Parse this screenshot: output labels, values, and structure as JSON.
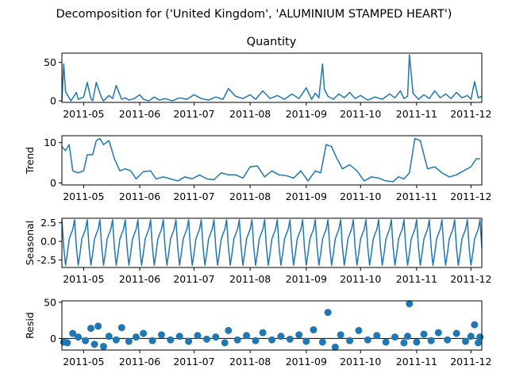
{
  "figure_title": "Decomposition for ('United Kingdom', 'ALUMINIUM STAMPED HEART')",
  "colors": {
    "series": "#1f77b4",
    "axes": "#000000",
    "zero_line": "#000000"
  },
  "x_tick_labels": [
    "2011-05",
    "2011-06",
    "2011-07",
    "2011-08",
    "2011-09",
    "2011-10",
    "2011-11",
    "2011-12"
  ],
  "chart_data": [
    {
      "type": "line",
      "name": "quantity",
      "title": "Quantity",
      "ylabel": "",
      "ylim": [
        -2,
        62
      ],
      "yticks": [
        0,
        50
      ],
      "xlim": [
        "2011-04-19",
        "2011-12-07"
      ],
      "x": [
        "2011-04-19",
        "2011-04-20",
        "2011-04-21",
        "2011-04-24",
        "2011-04-27",
        "2011-04-28",
        "2011-05-01",
        "2011-05-03",
        "2011-05-05",
        "2011-05-06",
        "2011-05-08",
        "2011-05-10",
        "2011-05-11",
        "2011-05-12",
        "2011-05-15",
        "2011-05-17",
        "2011-05-19",
        "2011-05-22",
        "2011-05-24",
        "2011-05-26",
        "2011-05-29",
        "2011-06-01",
        "2011-06-03",
        "2011-06-06",
        "2011-06-09",
        "2011-06-12",
        "2011-06-15",
        "2011-06-19",
        "2011-06-23",
        "2011-06-27",
        "2011-07-01",
        "2011-07-05",
        "2011-07-09",
        "2011-07-13",
        "2011-07-17",
        "2011-07-20",
        "2011-07-24",
        "2011-07-28",
        "2011-08-01",
        "2011-08-04",
        "2011-08-08",
        "2011-08-12",
        "2011-08-16",
        "2011-08-20",
        "2011-08-24",
        "2011-08-28",
        "2011-09-01",
        "2011-09-04",
        "2011-09-06",
        "2011-09-08",
        "2011-09-10",
        "2011-09-11",
        "2011-09-13",
        "2011-09-16",
        "2011-09-19",
        "2011-09-22",
        "2011-09-25",
        "2011-09-28",
        "2011-10-01",
        "2011-10-05",
        "2011-10-09",
        "2011-10-13",
        "2011-10-17",
        "2011-10-20",
        "2011-10-23",
        "2011-10-25",
        "2011-10-27",
        "2011-10-28",
        "2011-10-30",
        "2011-11-02",
        "2011-11-05",
        "2011-11-08",
        "2011-11-11",
        "2011-11-14",
        "2011-11-17",
        "2011-11-20",
        "2011-11-23",
        "2011-11-26",
        "2011-11-29",
        "2011-12-01",
        "2011-12-03",
        "2011-12-05",
        "2011-12-07"
      ],
      "values": [
        0,
        48,
        12,
        0,
        11,
        2,
        5,
        24,
        3,
        0,
        24,
        10,
        4,
        0,
        7,
        3,
        20,
        2,
        4,
        1,
        3,
        8,
        2,
        0,
        5,
        1,
        3,
        0,
        4,
        2,
        8,
        3,
        1,
        5,
        2,
        16,
        6,
        3,
        8,
        2,
        13,
        3,
        7,
        2,
        9,
        3,
        17,
        2,
        10,
        4,
        48,
        15,
        6,
        2,
        9,
        4,
        11,
        3,
        7,
        1,
        5,
        2,
        9,
        4,
        13,
        3,
        6,
        60,
        10,
        2,
        8,
        3,
        13,
        4,
        9,
        3,
        11,
        4,
        7,
        2,
        25,
        4,
        6
      ]
    },
    {
      "type": "line",
      "name": "trend",
      "title": "",
      "ylabel": "Trend",
      "ylim": [
        -0.5,
        11.7
      ],
      "yticks": [
        0,
        10
      ],
      "xlim": [
        "2011-04-19",
        "2011-12-07"
      ],
      "x": [
        "2011-04-19",
        "2011-04-21",
        "2011-04-23",
        "2011-04-25",
        "2011-04-28",
        "2011-05-01",
        "2011-05-03",
        "2011-05-06",
        "2011-05-08",
        "2011-05-10",
        "2011-05-12",
        "2011-05-15",
        "2011-05-18",
        "2011-05-21",
        "2011-05-24",
        "2011-05-27",
        "2011-05-30",
        "2011-06-03",
        "2011-06-07",
        "2011-06-10",
        "2011-06-14",
        "2011-06-18",
        "2011-06-22",
        "2011-06-26",
        "2011-06-30",
        "2011-07-04",
        "2011-07-08",
        "2011-07-12",
        "2011-07-16",
        "2011-07-20",
        "2011-07-24",
        "2011-07-28",
        "2011-08-01",
        "2011-08-05",
        "2011-08-09",
        "2011-08-13",
        "2011-08-17",
        "2011-08-21",
        "2011-08-25",
        "2011-08-29",
        "2011-09-02",
        "2011-09-06",
        "2011-09-09",
        "2011-09-12",
        "2011-09-15",
        "2011-09-18",
        "2011-09-21",
        "2011-09-25",
        "2011-09-29",
        "2011-10-03",
        "2011-10-07",
        "2011-10-11",
        "2011-10-15",
        "2011-10-19",
        "2011-10-22",
        "2011-10-25",
        "2011-10-28",
        "2011-10-31",
        "2011-11-03",
        "2011-11-07",
        "2011-11-11",
        "2011-11-15",
        "2011-11-19",
        "2011-11-23",
        "2011-11-27",
        "2011-12-01",
        "2011-12-04",
        "2011-12-06"
      ],
      "values": [
        9,
        8,
        9.5,
        3,
        2.5,
        3,
        7,
        7,
        10.5,
        11,
        9.5,
        10.5,
        6,
        3,
        3.5,
        3,
        1,
        2.8,
        3,
        1,
        1.5,
        1,
        0.5,
        1.5,
        1,
        2,
        1,
        0.8,
        2.5,
        2,
        2,
        1.2,
        4,
        4.2,
        1.5,
        3,
        2,
        1.8,
        1.2,
        3,
        0.5,
        3,
        2.5,
        9.5,
        9,
        6,
        3.5,
        4.5,
        3,
        0.5,
        1.5,
        1.2,
        0.5,
        0.3,
        1.5,
        1,
        2.5,
        11,
        10.5,
        3.5,
        4,
        2.5,
        1.5,
        2,
        3,
        4,
        6,
        6
      ]
    },
    {
      "type": "line",
      "name": "seasonal",
      "title": "",
      "ylabel": "Seasonal",
      "ylim": [
        -3.5,
        3.1
      ],
      "yticks": [
        -2.5,
        0.0,
        2.5
      ],
      "period": 7,
      "pattern": [
        2.9,
        -0.8,
        -3.2,
        -1.6,
        0.3,
        1.0,
        1.6
      ],
      "xlim": [
        "2011-04-19",
        "2011-12-07"
      ]
    },
    {
      "type": "scatter",
      "name": "resid",
      "title": "",
      "ylabel": "Resid",
      "ylim": [
        -16,
        52
      ],
      "yticks": [
        0,
        50
      ],
      "xlim": [
        "2011-04-19",
        "2011-12-07"
      ],
      "x": [
        "2011-04-20",
        "2011-04-22",
        "2011-04-25",
        "2011-04-28",
        "2011-05-02",
        "2011-05-05",
        "2011-05-07",
        "2011-05-09",
        "2011-05-12",
        "2011-05-15",
        "2011-05-19",
        "2011-05-22",
        "2011-05-26",
        "2011-05-30",
        "2011-06-03",
        "2011-06-08",
        "2011-06-13",
        "2011-06-18",
        "2011-06-23",
        "2011-06-28",
        "2011-07-03",
        "2011-07-08",
        "2011-07-13",
        "2011-07-18",
        "2011-07-20",
        "2011-07-25",
        "2011-07-30",
        "2011-08-04",
        "2011-08-08",
        "2011-08-13",
        "2011-08-18",
        "2011-08-23",
        "2011-08-28",
        "2011-09-01",
        "2011-09-05",
        "2011-09-10",
        "2011-09-13",
        "2011-09-17",
        "2011-09-20",
        "2011-09-25",
        "2011-09-30",
        "2011-10-05",
        "2011-10-10",
        "2011-10-15",
        "2011-10-20",
        "2011-10-25",
        "2011-10-27",
        "2011-10-28",
        "2011-11-01",
        "2011-11-05",
        "2011-11-09",
        "2011-11-13",
        "2011-11-18",
        "2011-11-23",
        "2011-11-28",
        "2011-12-01",
        "2011-12-03",
        "2011-12-05",
        "2011-12-06"
      ],
      "values": [
        -5,
        -6,
        7,
        2,
        -3,
        14,
        -8,
        17,
        -11,
        3,
        -2,
        15,
        -4,
        2,
        7,
        -3,
        5,
        -2,
        3,
        -4,
        4,
        -1,
        2,
        -6,
        11,
        -2,
        4,
        -3,
        8,
        -2,
        3,
        -1,
        5,
        -4,
        12,
        -5,
        36,
        -12,
        5,
        -3,
        11,
        -2,
        4,
        -5,
        2,
        -6,
        3,
        48,
        -5,
        6,
        -3,
        8,
        -2,
        7,
        -4,
        3,
        19,
        -6,
        2
      ]
    }
  ]
}
